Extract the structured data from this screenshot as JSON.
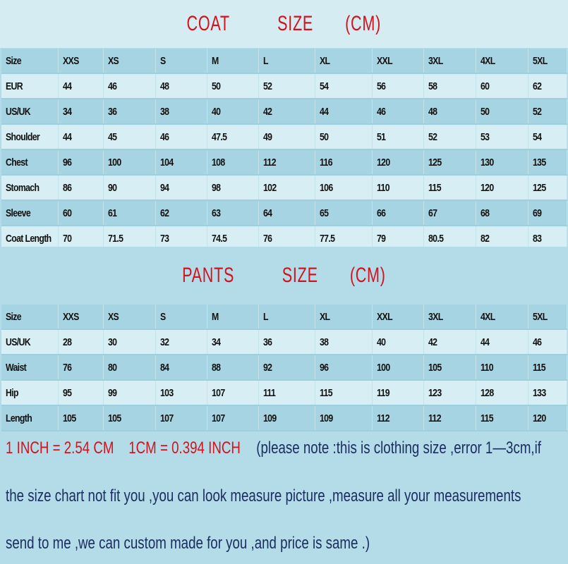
{
  "coat": {
    "title": "COAT   SIZE  (CM)",
    "rows": [
      [
        "Size",
        "XXS",
        "XS",
        "S",
        "M",
        "L",
        "XL",
        "XXL",
        "3XL",
        "4XL",
        "5XL"
      ],
      [
        "EUR",
        "44",
        "46",
        "48",
        "50",
        "52",
        "54",
        "56",
        "58",
        "60",
        "62"
      ],
      [
        "US/UK",
        "34",
        "36",
        "38",
        "40",
        "42",
        "44",
        "46",
        "48",
        "50",
        "52"
      ],
      [
        "Shoulder",
        "44",
        "45",
        "46",
        "47.5",
        "49",
        "50",
        "51",
        "52",
        "53",
        "54"
      ],
      [
        "Chest",
        "96",
        "100",
        "104",
        "108",
        "112",
        "116",
        "120",
        "125",
        "130",
        "135"
      ],
      [
        "Stomach",
        "86",
        "90",
        "94",
        "98",
        "102",
        "106",
        "110",
        "115",
        "120",
        "125"
      ],
      [
        "Sleeve",
        "60",
        "61",
        "62",
        "63",
        "64",
        "65",
        "66",
        "67",
        "68",
        "69"
      ],
      [
        "Coat Length",
        "70",
        "71.5",
        "73",
        "74.5",
        "76",
        "77.5",
        "79",
        "80.5",
        "82",
        "83"
      ]
    ]
  },
  "pants": {
    "title": "PANTS   SIZE  (CM)",
    "rows": [
      [
        "Size",
        "XXS",
        "XS",
        "S",
        "M",
        "L",
        "XL",
        "XXL",
        "3XL",
        "4XL",
        "5XL"
      ],
      [
        "US/UK",
        "28",
        "30",
        "32",
        "34",
        "36",
        "38",
        "40",
        "42",
        "44",
        "46"
      ],
      [
        "Waist",
        "76",
        "80",
        "84",
        "88",
        "92",
        "96",
        "100",
        "105",
        "110",
        "115"
      ],
      [
        "Hip",
        "95",
        "99",
        "103",
        "107",
        "111",
        "115",
        "119",
        "123",
        "128",
        "133"
      ],
      [
        "Length",
        "105",
        "105",
        "107",
        "107",
        "109",
        "109",
        "112",
        "112",
        "115",
        "120"
      ]
    ]
  },
  "notes": {
    "conversion": "1 INCH = 2.54 CM    1CM = 0.394 INCH",
    "line1": "(please note :this is clothing size ,error 1—3cm,if",
    "line2": "the size chart not fit you ,you can look measure picture ,measure all your measurements",
    "line3": "send to me ,we can custom made for you ,and price is same .)"
  },
  "colors": {
    "title": "#d3121c",
    "note_text": "#1b2c5e",
    "row_dark": "#a6d4e3",
    "row_light": "#d6eef4"
  }
}
